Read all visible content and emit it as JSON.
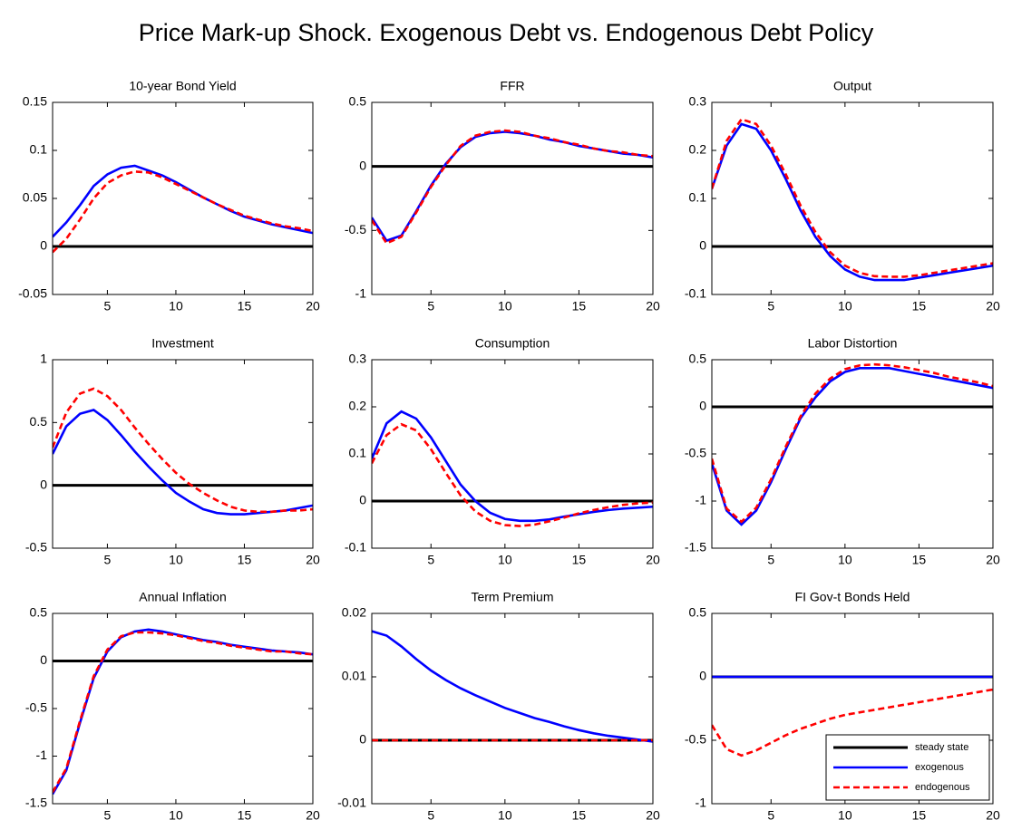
{
  "title": "Price Mark-up Shock. Exogenous Debt vs. Endogenous Debt Policy",
  "chart_data": [
    {
      "type": "line",
      "title": "10-year Bond Yield",
      "x": [
        1,
        2,
        3,
        4,
        5,
        6,
        7,
        8,
        9,
        10,
        11,
        12,
        13,
        14,
        15,
        16,
        17,
        18,
        19,
        20
      ],
      "xlim": [
        1,
        20
      ],
      "xticks": [
        5,
        10,
        15,
        20
      ],
      "ylim": [
        -0.05,
        0.15
      ],
      "yticks": [
        -0.05,
        0,
        0.05,
        0.1,
        0.15
      ],
      "series": [
        {
          "color": "#000000",
          "values": [
            0,
            0,
            0,
            0,
            0,
            0,
            0,
            0,
            0,
            0,
            0,
            0,
            0,
            0,
            0,
            0,
            0,
            0,
            0,
            0
          ]
        },
        {
          "color": "#0000ff",
          "values": [
            0.01,
            0.025,
            0.043,
            0.063,
            0.075,
            0.082,
            0.084,
            0.079,
            0.074,
            0.067,
            0.059,
            0.051,
            0.044,
            0.037,
            0.031,
            0.027,
            0.023,
            0.02,
            0.017,
            0.014
          ]
        },
        {
          "color": "#ff0000",
          "dashed": true,
          "values": [
            -0.006,
            0.008,
            0.028,
            0.05,
            0.066,
            0.074,
            0.078,
            0.077,
            0.072,
            0.065,
            0.058,
            0.051,
            0.044,
            0.038,
            0.032,
            0.028,
            0.024,
            0.021,
            0.019,
            0.016
          ]
        }
      ]
    },
    {
      "type": "line",
      "title": "FFR",
      "x": [
        1,
        2,
        3,
        4,
        5,
        6,
        7,
        8,
        9,
        10,
        11,
        12,
        13,
        14,
        15,
        16,
        17,
        18,
        19,
        20
      ],
      "xlim": [
        1,
        20
      ],
      "xticks": [
        5,
        10,
        15,
        20
      ],
      "ylim": [
        -1,
        0.5
      ],
      "yticks": [
        -1,
        -0.5,
        0,
        0.5
      ],
      "series": [
        {
          "color": "#000000",
          "values": [
            0,
            0,
            0,
            0,
            0,
            0,
            0,
            0,
            0,
            0,
            0,
            0,
            0,
            0,
            0,
            0,
            0,
            0,
            0,
            0
          ]
        },
        {
          "color": "#0000ff",
          "values": [
            -0.4,
            -0.58,
            -0.54,
            -0.35,
            -0.15,
            0.02,
            0.15,
            0.23,
            0.26,
            0.27,
            0.26,
            0.24,
            0.21,
            0.19,
            0.16,
            0.14,
            0.12,
            0.1,
            0.09,
            0.07
          ]
        },
        {
          "color": "#ff0000",
          "dashed": true,
          "values": [
            -0.42,
            -0.6,
            -0.55,
            -0.36,
            -0.16,
            0.01,
            0.16,
            0.24,
            0.27,
            0.28,
            0.27,
            0.24,
            0.22,
            0.19,
            0.17,
            0.14,
            0.12,
            0.11,
            0.09,
            0.08
          ]
        }
      ]
    },
    {
      "type": "line",
      "title": "Output",
      "x": [
        1,
        2,
        3,
        4,
        5,
        6,
        7,
        8,
        9,
        10,
        11,
        12,
        13,
        14,
        15,
        16,
        17,
        18,
        19,
        20
      ],
      "xlim": [
        1,
        20
      ],
      "xticks": [
        5,
        10,
        15,
        20
      ],
      "ylim": [
        -0.1,
        0.3
      ],
      "yticks": [
        -0.1,
        0,
        0.1,
        0.2,
        0.3
      ],
      "series": [
        {
          "color": "#000000",
          "values": [
            0,
            0,
            0,
            0,
            0,
            0,
            0,
            0,
            0,
            0,
            0,
            0,
            0,
            0,
            0,
            0,
            0,
            0,
            0,
            0
          ]
        },
        {
          "color": "#0000ff",
          "values": [
            0.12,
            0.21,
            0.255,
            0.245,
            0.2,
            0.14,
            0.075,
            0.02,
            -0.02,
            -0.048,
            -0.063,
            -0.07,
            -0.07,
            -0.07,
            -0.065,
            -0.06,
            -0.055,
            -0.05,
            -0.045,
            -0.04
          ]
        },
        {
          "color": "#ff0000",
          "dashed": true,
          "values": [
            0.12,
            0.22,
            0.265,
            0.255,
            0.21,
            0.15,
            0.085,
            0.03,
            -0.012,
            -0.04,
            -0.055,
            -0.062,
            -0.063,
            -0.063,
            -0.06,
            -0.055,
            -0.05,
            -0.045,
            -0.04,
            -0.035
          ]
        }
      ]
    },
    {
      "type": "line",
      "title": "Investment",
      "x": [
        1,
        2,
        3,
        4,
        5,
        6,
        7,
        8,
        9,
        10,
        11,
        12,
        13,
        14,
        15,
        16,
        17,
        18,
        19,
        20
      ],
      "xlim": [
        1,
        20
      ],
      "xticks": [
        5,
        10,
        15,
        20
      ],
      "ylim": [
        -0.5,
        1
      ],
      "yticks": [
        -0.5,
        0,
        0.5,
        1
      ],
      "series": [
        {
          "color": "#000000",
          "values": [
            0,
            0,
            0,
            0,
            0,
            0,
            0,
            0,
            0,
            0,
            0,
            0,
            0,
            0,
            0,
            0,
            0,
            0,
            0,
            0
          ]
        },
        {
          "color": "#0000ff",
          "values": [
            0.25,
            0.47,
            0.57,
            0.6,
            0.52,
            0.4,
            0.27,
            0.15,
            0.04,
            -0.06,
            -0.13,
            -0.19,
            -0.22,
            -0.23,
            -0.23,
            -0.22,
            -0.21,
            -0.2,
            -0.18,
            -0.16
          ]
        },
        {
          "color": "#ff0000",
          "dashed": true,
          "values": [
            0.3,
            0.58,
            0.73,
            0.77,
            0.71,
            0.6,
            0.46,
            0.33,
            0.21,
            0.1,
            0.01,
            -0.06,
            -0.12,
            -0.17,
            -0.2,
            -0.21,
            -0.21,
            -0.2,
            -0.2,
            -0.19
          ]
        }
      ]
    },
    {
      "type": "line",
      "title": "Consumption",
      "x": [
        1,
        2,
        3,
        4,
        5,
        6,
        7,
        8,
        9,
        10,
        11,
        12,
        13,
        14,
        15,
        16,
        17,
        18,
        19,
        20
      ],
      "xlim": [
        1,
        20
      ],
      "xticks": [
        5,
        10,
        15,
        20
      ],
      "ylim": [
        -0.1,
        0.3
      ],
      "yticks": [
        -0.1,
        0,
        0.1,
        0.2,
        0.3
      ],
      "series": [
        {
          "color": "#000000",
          "values": [
            0,
            0,
            0,
            0,
            0,
            0,
            0,
            0,
            0,
            0,
            0,
            0,
            0,
            0,
            0,
            0,
            0,
            0,
            0,
            0
          ]
        },
        {
          "color": "#0000ff",
          "values": [
            0.09,
            0.165,
            0.19,
            0.175,
            0.135,
            0.085,
            0.035,
            0.0,
            -0.025,
            -0.038,
            -0.042,
            -0.042,
            -0.039,
            -0.033,
            -0.028,
            -0.023,
            -0.019,
            -0.016,
            -0.014,
            -0.012
          ]
        },
        {
          "color": "#ff0000",
          "dashed": true,
          "values": [
            0.08,
            0.14,
            0.163,
            0.15,
            0.11,
            0.06,
            0.012,
            -0.022,
            -0.042,
            -0.051,
            -0.053,
            -0.05,
            -0.043,
            -0.035,
            -0.026,
            -0.019,
            -0.013,
            -0.008,
            -0.005,
            -0.003
          ]
        }
      ]
    },
    {
      "type": "line",
      "title": "Labor Distortion",
      "x": [
        1,
        2,
        3,
        4,
        5,
        6,
        7,
        8,
        9,
        10,
        11,
        12,
        13,
        14,
        15,
        16,
        17,
        18,
        19,
        20
      ],
      "xlim": [
        1,
        20
      ],
      "xticks": [
        5,
        10,
        15,
        20
      ],
      "ylim": [
        -1.5,
        0.5
      ],
      "yticks": [
        -1.5,
        -1,
        -0.5,
        0,
        0.5
      ],
      "series": [
        {
          "color": "#000000",
          "values": [
            0,
            0,
            0,
            0,
            0,
            0,
            0,
            0,
            0,
            0,
            0,
            0,
            0,
            0,
            0,
            0,
            0,
            0,
            0,
            0
          ]
        },
        {
          "color": "#0000ff",
          "values": [
            -0.6,
            -1.1,
            -1.25,
            -1.1,
            -0.8,
            -0.45,
            -0.12,
            0.1,
            0.27,
            0.37,
            0.41,
            0.41,
            0.41,
            0.38,
            0.35,
            0.32,
            0.29,
            0.26,
            0.23,
            0.2
          ]
        },
        {
          "color": "#ff0000",
          "dashed": true,
          "values": [
            -0.55,
            -1.08,
            -1.22,
            -1.07,
            -0.77,
            -0.42,
            -0.1,
            0.14,
            0.3,
            0.4,
            0.44,
            0.45,
            0.44,
            0.42,
            0.39,
            0.36,
            0.32,
            0.29,
            0.26,
            0.22
          ]
        }
      ]
    },
    {
      "type": "line",
      "title": "Annual Inflation",
      "x": [
        1,
        2,
        3,
        4,
        5,
        6,
        7,
        8,
        9,
        10,
        11,
        12,
        13,
        14,
        15,
        16,
        17,
        18,
        19,
        20
      ],
      "xlim": [
        1,
        20
      ],
      "xticks": [
        5,
        10,
        15,
        20
      ],
      "ylim": [
        -1.5,
        0.5
      ],
      "yticks": [
        -1.5,
        -1,
        -0.5,
        0,
        0.5
      ],
      "series": [
        {
          "color": "#000000",
          "values": [
            0,
            0,
            0,
            0,
            0,
            0,
            0,
            0,
            0,
            0,
            0,
            0,
            0,
            0,
            0,
            0,
            0,
            0,
            0,
            0
          ]
        },
        {
          "color": "#0000ff",
          "values": [
            -1.4,
            -1.15,
            -0.65,
            -0.18,
            0.1,
            0.25,
            0.31,
            0.33,
            0.31,
            0.28,
            0.25,
            0.22,
            0.2,
            0.17,
            0.15,
            0.13,
            0.11,
            0.1,
            0.09,
            0.07
          ]
        },
        {
          "color": "#ff0000",
          "dashed": true,
          "values": [
            -1.38,
            -1.13,
            -0.63,
            -0.16,
            0.12,
            0.26,
            0.3,
            0.3,
            0.29,
            0.27,
            0.24,
            0.21,
            0.19,
            0.16,
            0.14,
            0.12,
            0.1,
            0.1,
            0.08,
            0.07
          ]
        }
      ]
    },
    {
      "type": "line",
      "title": "Term Premium",
      "x": [
        1,
        2,
        3,
        4,
        5,
        6,
        7,
        8,
        9,
        10,
        11,
        12,
        13,
        14,
        15,
        16,
        17,
        18,
        19,
        20
      ],
      "xlim": [
        1,
        20
      ],
      "xticks": [
        5,
        10,
        15,
        20
      ],
      "ylim": [
        -0.01,
        0.02
      ],
      "yticks": [
        -0.01,
        0,
        0.01,
        0.02
      ],
      "series": [
        {
          "color": "#000000",
          "values": [
            0,
            0,
            0,
            0,
            0,
            0,
            0,
            0,
            0,
            0,
            0,
            0,
            0,
            0,
            0,
            0,
            0,
            0,
            0,
            0
          ]
        },
        {
          "color": "#0000ff",
          "values": [
            0.0172,
            0.0165,
            0.0148,
            0.0128,
            0.011,
            0.0095,
            0.0082,
            0.0071,
            0.0061,
            0.0051,
            0.0043,
            0.0035,
            0.0029,
            0.0022,
            0.0016,
            0.0011,
            0.0007,
            0.0004,
            0.0001,
            -0.0002
          ]
        },
        {
          "color": "#ff0000",
          "dashed": true,
          "values": [
            0,
            0,
            0,
            0,
            0,
            0,
            0,
            0,
            0,
            0,
            0,
            0,
            0,
            0,
            0,
            0,
            0,
            0,
            0,
            0
          ]
        }
      ]
    },
    {
      "type": "line",
      "title": "FI Gov-t Bonds Held",
      "x": [
        1,
        2,
        3,
        4,
        5,
        6,
        7,
        8,
        9,
        10,
        11,
        12,
        13,
        14,
        15,
        16,
        17,
        18,
        19,
        20
      ],
      "xlim": [
        1,
        20
      ],
      "xticks": [
        5,
        10,
        15,
        20
      ],
      "ylim": [
        -1,
        0.5
      ],
      "yticks": [
        -1,
        -0.5,
        0,
        0.5
      ],
      "legend": "lower right",
      "series": [
        {
          "name": "steady state",
          "color": "#000000",
          "values": [
            0,
            0,
            0,
            0,
            0,
            0,
            0,
            0,
            0,
            0,
            0,
            0,
            0,
            0,
            0,
            0,
            0,
            0,
            0,
            0
          ]
        },
        {
          "name": "exogenous",
          "color": "#0000ff",
          "values": [
            0,
            0,
            0,
            0,
            0,
            0,
            0,
            0,
            0,
            0,
            0,
            0,
            0,
            0,
            0,
            0,
            0,
            0,
            0,
            0
          ]
        },
        {
          "name": "endogenous",
          "color": "#ff0000",
          "dashed": true,
          "values": [
            -0.38,
            -0.57,
            -0.62,
            -0.58,
            -0.52,
            -0.46,
            -0.41,
            -0.37,
            -0.33,
            -0.3,
            -0.28,
            -0.26,
            -0.24,
            -0.22,
            -0.2,
            -0.18,
            -0.16,
            -0.14,
            -0.12,
            -0.1
          ]
        }
      ]
    }
  ]
}
